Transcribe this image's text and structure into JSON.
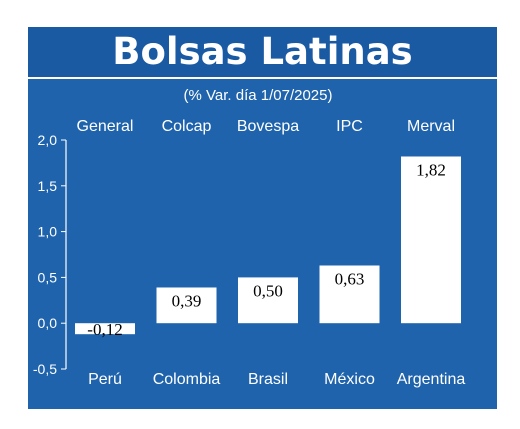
{
  "title": "Bolsas Latinas",
  "subtitle": "(% Var. día 1/07/2025)",
  "colors": {
    "frame": "#1f63ac",
    "bar": "#ffffff",
    "text": "#ffffff"
  },
  "chart_data": {
    "type": "bar",
    "title": "Bolsas Latinas",
    "subtitle": "(% Var. día 1/07/2025)",
    "categories": [
      "Perú",
      "Colombia",
      "Brasil",
      "México",
      "Argentina"
    ],
    "index_names": [
      "General",
      "Colcap",
      "Bovespa",
      "IPC",
      "Merval"
    ],
    "values": [
      -0.12,
      0.39,
      0.5,
      0.63,
      1.82
    ],
    "value_labels": [
      "-0,12",
      "0,39",
      "0,50",
      "0,63",
      "1,82"
    ],
    "ylim": [
      -0.5,
      2.0
    ],
    "yticks": [
      2.0,
      1.5,
      1.0,
      0.5,
      0.0,
      -0.5
    ],
    "ytick_labels": [
      "2,0",
      "1,5",
      "1,0",
      "0,5",
      "0,0",
      "-0,5"
    ],
    "grid": false,
    "xlabel": "",
    "ylabel": ""
  }
}
